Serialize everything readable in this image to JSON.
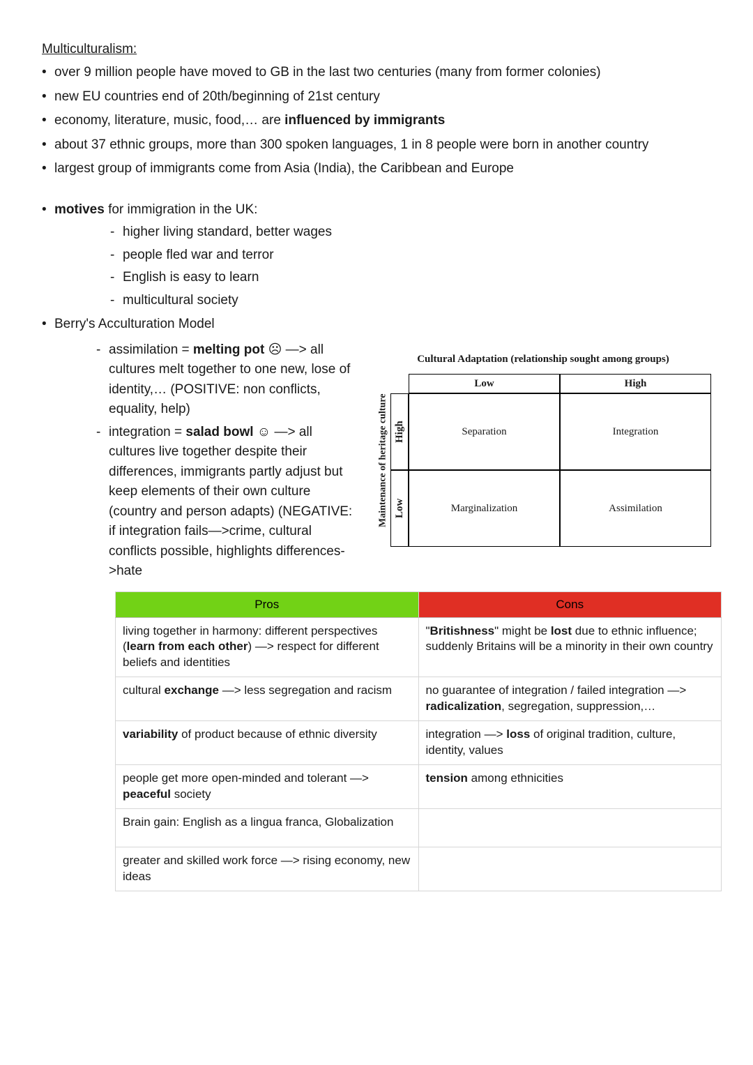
{
  "title": "Multiculturalism:",
  "bullets_top": [
    "over 9 million people have moved to GB in the last two centuries (many from former colonies)",
    "new EU countries end of 20th/beginning of 21st century",
    "economy, literature, music, food,… are <b>influenced by immigrants</b>",
    "about 37 ethnic groups, more than 300 spoken languages, 1 in 8 people were born in another country",
    "largest group of immigrants come from Asia (India), the Caribbean and Europe"
  ],
  "motives_label": "<b>motives</b> for immigration in the UK:",
  "motives_items": [
    "higher living standard, better wages",
    "people fled war and terror",
    "English is easy to learn",
    "multicultural society"
  ],
  "berry_label": "Berry's Acculturation Model",
  "berry_items": [
    "assimilation = <b>melting pot</b> ☹ —> all cultures melt together to one new, lose of identity,… (POSITIVE: non conflicts, equality, help)",
    "integration = <b>salad bowl</b> ☺ —> all cultures live together despite their differences, immigrants partly adjust but keep elements of their own culture (country and person adapts) (NEGATIVE: if integration fails—>crime, cultural conflicts possible, highlights differences->hate"
  ],
  "matrix": {
    "title": "Cultural Adaptation (relationship sought among groups)",
    "y_axis": "Maintenance of  heritage culture",
    "col_low": "Low",
    "col_high": "High",
    "row_high": "High",
    "row_low": "Low",
    "top_left": "Separation",
    "top_right": "Integration",
    "bottom_left": "Marginalization",
    "bottom_right": "Assimilation",
    "colors": {
      "border": "#000000",
      "text": "#000000",
      "background": "#ffffff"
    }
  },
  "proscons": {
    "headers": {
      "pros": "Pros",
      "cons": "Cons"
    },
    "header_colors": {
      "pros": "#72d216",
      "cons": "#e02f24"
    },
    "rows": [
      {
        "pro": "living together in harmony: different perspectives (<b>learn from each other</b>) —> respect for different beliefs and identities",
        "con": "\"<b>Britishness</b>\" might be <b>lost</b> due to ethnic influence; suddenly Britains will be a minority in their own country"
      },
      {
        "pro": "cultural <b>exchange</b> —> less segregation and racism",
        "con": "no guarantee of integration / failed integration —> <b>radicalization</b>, segregation, suppression,…"
      },
      {
        "pro": "<b>variability</b> of product because of ethnic diversity",
        "con": "integration —> <b>loss</b> of original tradition, culture, identity, values"
      },
      {
        "pro": "people get more open-minded and tolerant —> <b>peaceful</b> society",
        "con": "<b>tension</b> among ethnicities"
      },
      {
        "pro": "Brain gain: English as a lingua franca, Globalization",
        "con": ""
      },
      {
        "pro": "greater and skilled work force —> rising economy, new ideas",
        "con": ""
      }
    ],
    "column_widths": [
      "50%",
      "50%"
    ],
    "border_color": "#d6d6d6",
    "font_size": 17
  }
}
